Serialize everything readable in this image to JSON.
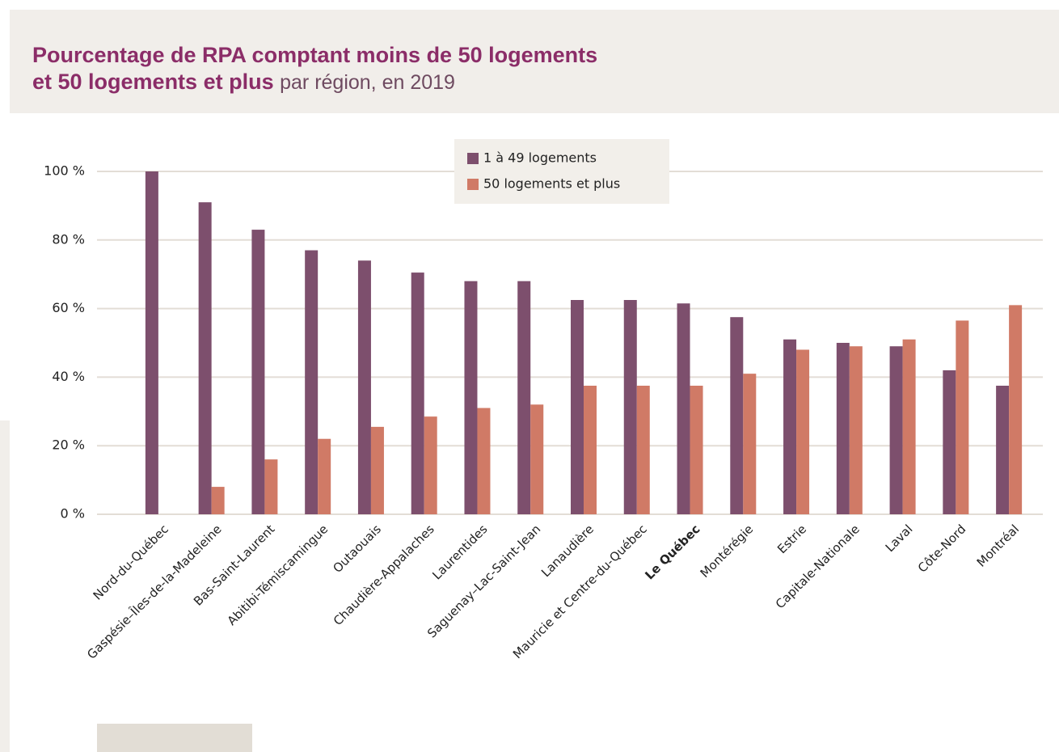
{
  "chart_data": {
    "type": "bar",
    "title": [
      "Pourcentage de RPA comptant moins de 50 logements",
      "et 50 logements et plus",
      "par région, en 2019"
    ],
    "categories": [
      "Nord-du-Québec",
      "Gaspésie–Îles-de-la-Madeleine",
      "Bas-Saint-Laurent",
      "Abitibi-Témiscamingue",
      "Outaouais",
      "Chaudière-Appalaches",
      "Laurentides",
      "Saguenay–Lac-Saint-Jean",
      "Lanaudière",
      "Mauricie et Centre-du-Québec",
      "Le Québec",
      "Montérégie",
      "Estrie",
      "Capitale-Nationale",
      "Laval",
      "Côte-Nord",
      "Montréal"
    ],
    "emphasis": [
      10
    ],
    "series": [
      {
        "name": "1 à 49 logements",
        "color": "#7d4f6d",
        "values": [
          100,
          91,
          83,
          77,
          74,
          70.5,
          68,
          68,
          62.5,
          62.5,
          61.5,
          57.5,
          51,
          50,
          49,
          42,
          37.5
        ]
      },
      {
        "name": "50 logements et plus",
        "color": "#d07a66",
        "values": [
          0,
          8,
          16,
          22,
          25.5,
          28.5,
          31,
          32,
          37.5,
          37.5,
          37.5,
          41,
          48,
          49,
          51,
          56.5,
          61
        ]
      }
    ],
    "ylim": [
      0,
      100
    ],
    "yticks": [
      {
        "value": 0,
        "label": "0 %"
      },
      {
        "value": 20,
        "label": "20 %"
      },
      {
        "value": 40,
        "label": "40 %"
      },
      {
        "value": 60,
        "label": "60 %"
      },
      {
        "value": 80,
        "label": "80 %"
      },
      {
        "value": 100,
        "label": "100 %"
      }
    ],
    "grid": true,
    "legend": "top"
  }
}
